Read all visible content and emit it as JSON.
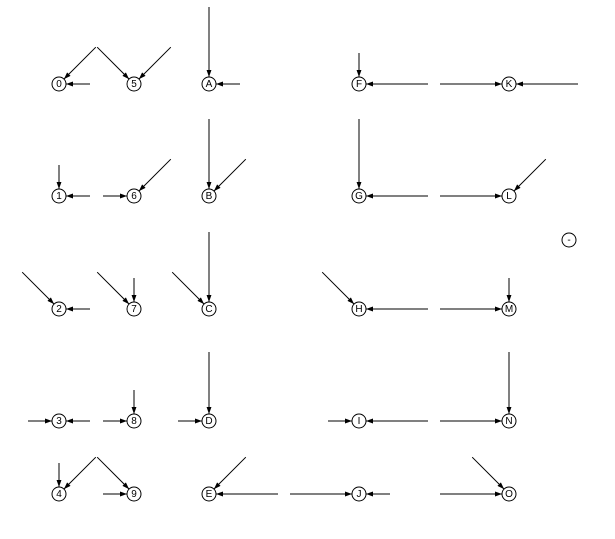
{
  "diagram": {
    "nodes": [
      {
        "id": "0",
        "label": "0"
      },
      {
        "id": "1",
        "label": "1"
      },
      {
        "id": "2",
        "label": "2"
      },
      {
        "id": "3",
        "label": "3"
      },
      {
        "id": "4",
        "label": "4"
      },
      {
        "id": "5",
        "label": "5"
      },
      {
        "id": "6",
        "label": "6"
      },
      {
        "id": "7",
        "label": "7"
      },
      {
        "id": "8",
        "label": "8"
      },
      {
        "id": "9",
        "label": "9"
      },
      {
        "id": "A",
        "label": "A"
      },
      {
        "id": "B",
        "label": "B"
      },
      {
        "id": "C",
        "label": "C"
      },
      {
        "id": "D",
        "label": "D"
      },
      {
        "id": "E",
        "label": "E"
      },
      {
        "id": "F",
        "label": "F"
      },
      {
        "id": "G",
        "label": "G"
      },
      {
        "id": "H",
        "label": "H"
      },
      {
        "id": "I",
        "label": "I"
      },
      {
        "id": "J",
        "label": "J"
      },
      {
        "id": "K",
        "label": "K"
      },
      {
        "id": "L",
        "label": "L"
      },
      {
        "id": "M",
        "label": "M"
      },
      {
        "id": "N",
        "label": "N"
      },
      {
        "id": "O",
        "label": "O"
      },
      {
        "id": "minus",
        "label": "-"
      }
    ],
    "edges": [
      {
        "to": "0",
        "from": "upper-right"
      },
      {
        "to": "0",
        "from": "right"
      },
      {
        "to": "5",
        "from": "upper-left"
      },
      {
        "to": "5",
        "from": "upper-right"
      },
      {
        "to": "A",
        "from": "above"
      },
      {
        "to": "A",
        "from": "right"
      },
      {
        "to": "F",
        "from": "above"
      },
      {
        "to": "F",
        "from": "right"
      },
      {
        "to": "K",
        "from": "left"
      },
      {
        "to": "K",
        "from": "right"
      },
      {
        "to": "1",
        "from": "above"
      },
      {
        "to": "1",
        "from": "right"
      },
      {
        "to": "6",
        "from": "left"
      },
      {
        "to": "6",
        "from": "upper-right"
      },
      {
        "to": "B",
        "from": "above"
      },
      {
        "to": "B",
        "from": "upper-right"
      },
      {
        "to": "G",
        "from": "above"
      },
      {
        "to": "G",
        "from": "right"
      },
      {
        "to": "L",
        "from": "left"
      },
      {
        "to": "L",
        "from": "upper-right"
      },
      {
        "to": "2",
        "from": "upper-left"
      },
      {
        "to": "2",
        "from": "right"
      },
      {
        "to": "7",
        "from": "upper-left"
      },
      {
        "to": "7",
        "from": "above"
      },
      {
        "to": "C",
        "from": "upper-left"
      },
      {
        "to": "C",
        "from": "above"
      },
      {
        "to": "H",
        "from": "upper-left"
      },
      {
        "to": "H",
        "from": "right"
      },
      {
        "to": "M",
        "from": "left"
      },
      {
        "to": "M",
        "from": "above"
      },
      {
        "to": "3",
        "from": "left"
      },
      {
        "to": "3",
        "from": "right"
      },
      {
        "to": "8",
        "from": "left"
      },
      {
        "to": "8",
        "from": "above"
      },
      {
        "to": "D",
        "from": "left"
      },
      {
        "to": "D",
        "from": "above"
      },
      {
        "to": "I",
        "from": "left"
      },
      {
        "to": "I",
        "from": "right"
      },
      {
        "to": "N",
        "from": "left"
      },
      {
        "to": "N",
        "from": "above"
      },
      {
        "to": "4",
        "from": "above"
      },
      {
        "to": "4",
        "from": "upper-right"
      },
      {
        "to": "9",
        "from": "upper-left"
      },
      {
        "to": "9",
        "from": "left"
      },
      {
        "to": "E",
        "from": "upper-right"
      },
      {
        "to": "E",
        "from": "right"
      },
      {
        "to": "J",
        "from": "left"
      },
      {
        "to": "J",
        "from": "right"
      },
      {
        "to": "O",
        "from": "upper-left"
      },
      {
        "to": "O",
        "from": "left"
      }
    ]
  }
}
